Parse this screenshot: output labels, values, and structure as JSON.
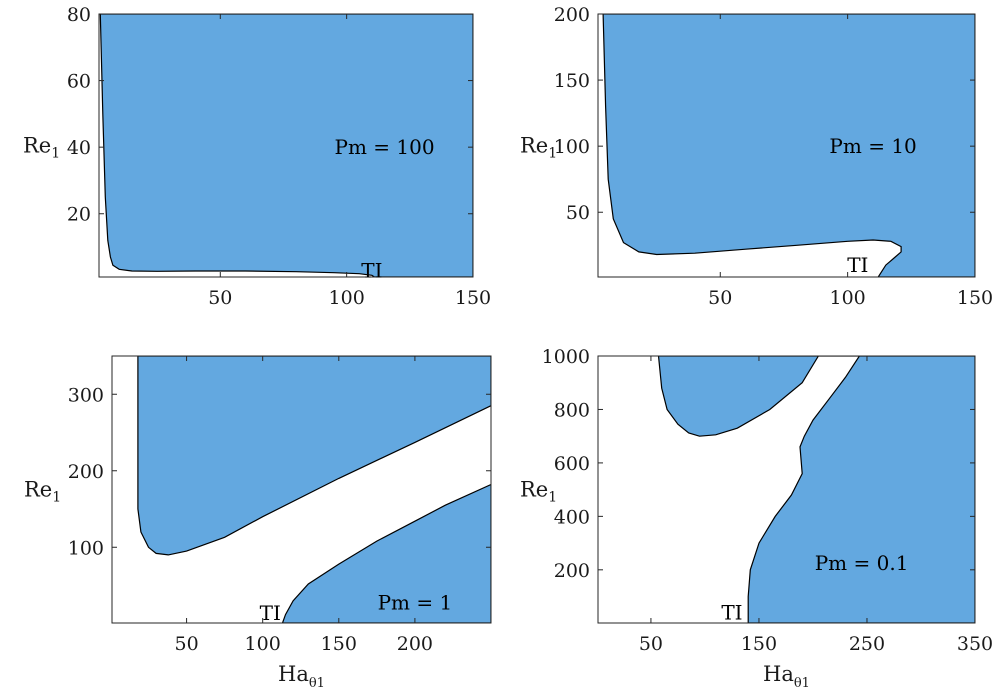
{
  "colors": {
    "unstable_region": "#63a8e0",
    "boundary": "#000000",
    "frame": "#262626"
  },
  "chart_data": [
    {
      "type": "area",
      "xlabel": "",
      "ylabel": "Re",
      "ylabel_sub": "1",
      "xlim": [
        2,
        150
      ],
      "ylim": [
        1,
        80
      ],
      "xticks": [
        50,
        100,
        150
      ],
      "yticks": [
        20,
        40,
        60,
        80
      ],
      "annotations": [
        {
          "text": "Pm = 100",
          "x": 115,
          "y": 40
        },
        {
          "text": "TI",
          "x": 110,
          "y": 3
        }
      ],
      "unstable_boundary": {
        "x": [
          2.5,
          3.5,
          4.5,
          5.5,
          6.5,
          7.5,
          10,
          15,
          25,
          40,
          60,
          80,
          95,
          105,
          110,
          111
        ],
        "y": [
          80,
          50,
          25,
          12,
          7,
          4.5,
          3.3,
          2.8,
          2.7,
          2.8,
          2.8,
          2.6,
          2.3,
          2.0,
          1.5,
          1.0
        ]
      }
    },
    {
      "type": "area",
      "xlabel": "",
      "ylabel": "Re",
      "ylabel_sub": "1",
      "xlim": [
        2,
        150
      ],
      "ylim": [
        1,
        200
      ],
      "xticks": [
        50,
        100,
        150
      ],
      "yticks": [
        50,
        100,
        150,
        200
      ],
      "annotations": [
        {
          "text": "Pm = 10",
          "x": 110,
          "y": 100
        },
        {
          "text": "TI",
          "x": 104,
          "y": 10
        }
      ],
      "unstable_boundary": {
        "x": [
          4,
          5,
          6,
          8,
          12,
          18,
          25,
          40,
          60,
          80,
          100,
          110,
          117,
          121,
          121,
          118,
          115,
          112
        ],
        "y": [
          200,
          130,
          75,
          45,
          27,
          20,
          18,
          19,
          22,
          25,
          28,
          29,
          28,
          24,
          20,
          15,
          10,
          1
        ]
      }
    },
    {
      "type": "area",
      "xlabel": "Ha",
      "xlabel_sub": "θ1",
      "ylabel": "Re",
      "ylabel_sub": "1",
      "xlim": [
        1,
        250
      ],
      "ylim": [
        1,
        350
      ],
      "xticks": [
        50,
        100,
        150,
        200
      ],
      "yticks": [
        100,
        200,
        300
      ],
      "annotations": [
        {
          "text": "Pm = 1",
          "x": 200,
          "y": 28
        },
        {
          "text": "TI",
          "x": 105,
          "y": 14
        }
      ],
      "upper_region_boundary": {
        "x": [
          18,
          18,
          20,
          25,
          30,
          38,
          50,
          75,
          100,
          150,
          200,
          250
        ],
        "y": [
          350,
          150,
          120,
          100,
          92,
          90,
          95,
          113,
          140,
          190,
          237,
          285
        ]
      },
      "lower_region_boundary": {
        "x": [
          113,
          115,
          120,
          130,
          150,
          175,
          200,
          220,
          250
        ],
        "y": [
          1,
          12,
          30,
          52,
          78,
          108,
          134,
          155,
          182
        ]
      }
    },
    {
      "type": "area",
      "xlabel": "Ha",
      "xlabel_sub": "θ1",
      "ylabel": "Re",
      "ylabel_sub": "1",
      "xlim": [
        1,
        350
      ],
      "ylim": [
        1,
        1000
      ],
      "xticks": [
        50,
        150,
        250,
        350
      ],
      "yticks": [
        200,
        400,
        600,
        800,
        1000
      ],
      "annotations": [
        {
          "text": "Pm = 0.1",
          "x": 245,
          "y": 225
        },
        {
          "text": "TI",
          "x": 125,
          "y": 40
        }
      ],
      "upper_region_boundary": {
        "x": [
          57,
          60,
          65,
          75,
          85,
          95,
          110,
          130,
          160,
          190,
          205
        ],
        "y": [
          1000,
          880,
          800,
          745,
          712,
          700,
          705,
          730,
          800,
          900,
          1000
        ]
      },
      "right_region_boundary": {
        "x": [
          243,
          230,
          215,
          200,
          192,
          188,
          190,
          180,
          165,
          150,
          142,
          140,
          140
        ],
        "y": [
          1000,
          920,
          840,
          760,
          700,
          660,
          560,
          480,
          400,
          300,
          200,
          100,
          1
        ]
      }
    }
  ]
}
